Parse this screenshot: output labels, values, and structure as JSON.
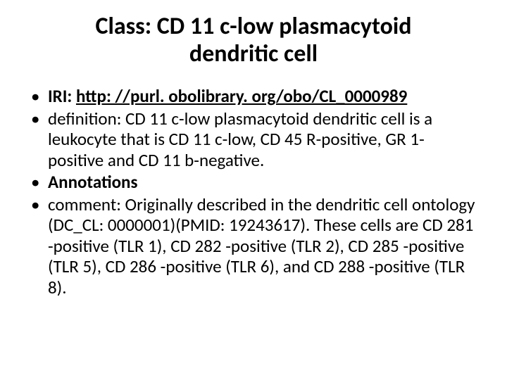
{
  "title": "Class: CD 11 c-low plasmacytoid dendritic cell",
  "items": [
    {
      "label": "IRI:",
      "labelBold": true,
      "link": "http: //purl. obolibrary. org/obo/CL_0000989",
      "linkBold": true,
      "linkUnderline": true
    },
    {
      "text": "definition: CD 11 c-low plasmacytoid dendritic cell is a leukocyte that is CD 11 c-low, CD 45 R-positive, GR 1-positive and CD 11 b-negative."
    },
    {
      "text": "Annotations",
      "bold": true
    },
    {
      "text": "comment: Originally described in the dendritic cell ontology (DC_CL: 0000001)(PMID: 19243617). These cells are CD 281 -positive (TLR 1), CD 282 -positive (TLR 2), CD 285 -positive (TLR 5), CD 286 -positive (TLR 6), and CD 288 -positive (TLR 8)."
    }
  ]
}
